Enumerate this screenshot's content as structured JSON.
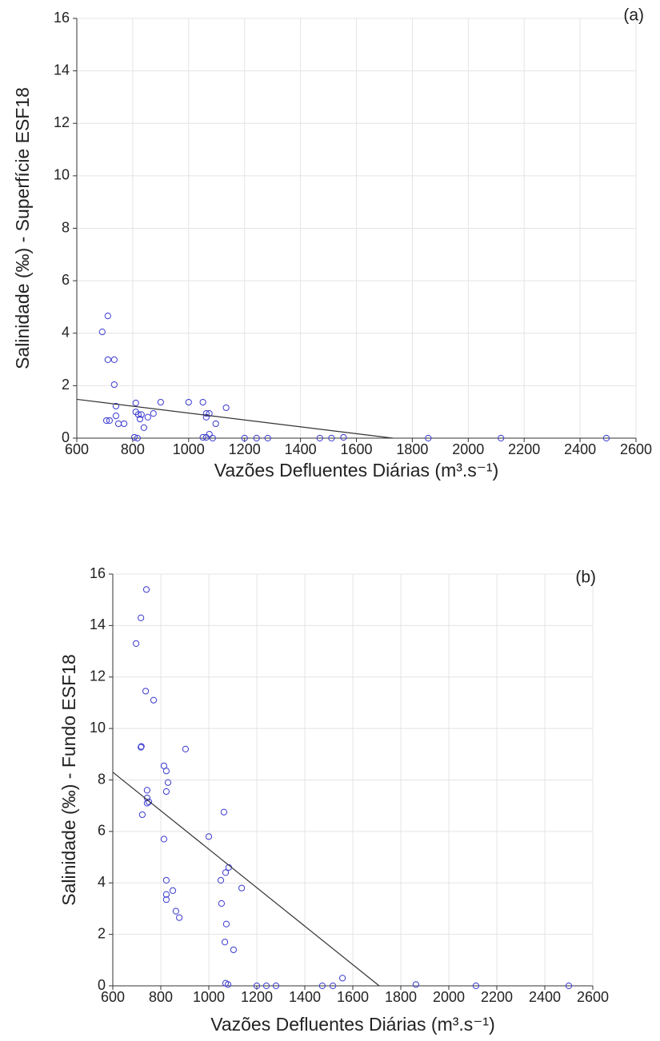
{
  "chart_data": [
    {
      "type": "scatter",
      "label": "(a)",
      "ylabel": "Salinidade (‰) - Superfície ESF18",
      "xlabel": "Vazões Defluentes Diárias (m³.s⁻¹)",
      "color": "#3a3ad0",
      "grid": true,
      "xlim": [
        600,
        2600
      ],
      "ylim": [
        0,
        16
      ],
      "xticks": [
        600,
        800,
        1000,
        1200,
        1400,
        1600,
        1800,
        2000,
        2200,
        2400,
        2600
      ],
      "yticks": [
        0,
        2,
        4,
        6,
        8,
        10,
        12,
        14,
        16
      ],
      "x": [
        691,
        711,
        711,
        734,
        734,
        740,
        706,
        717,
        740,
        749,
        769,
        811,
        811,
        820,
        826,
        831,
        840,
        854,
        874,
        900,
        1000,
        1051,
        1063,
        1074,
        1063,
        1097,
        1134,
        806,
        817,
        1051,
        1063,
        1074,
        1086,
        1200,
        1243,
        1283,
        1469,
        1511,
        1554,
        1857,
        2117,
        2494
      ],
      "y": [
        4.05,
        4.66,
        2.99,
        2.99,
        2.04,
        1.22,
        0.67,
        0.67,
        0.85,
        0.55,
        0.55,
        1.34,
        1.0,
        0.9,
        0.73,
        0.9,
        0.4,
        0.8,
        0.94,
        1.37,
        1.37,
        1.37,
        0.94,
        0.94,
        0.8,
        0.55,
        1.16,
        0.03,
        0,
        0.03,
        0.03,
        0.15,
        0,
        0,
        0,
        0,
        0,
        0,
        0.03,
        0,
        0,
        0
      ],
      "trend": {
        "x": [
          600,
          1730
        ],
        "y": [
          1.48,
          0
        ]
      }
    },
    {
      "type": "scatter",
      "label": "(b)",
      "ylabel": "Salinidade (‰) - Fundo ESF18",
      "xlabel": "Vazões Defluentes Diárias (m³.s⁻¹)",
      "color": "#3a3ad0",
      "grid": true,
      "xlim": [
        600,
        2600
      ],
      "ylim": [
        0,
        16
      ],
      "xticks": [
        600,
        800,
        1000,
        1200,
        1400,
        1600,
        1800,
        2000,
        2200,
        2400,
        2600
      ],
      "yticks": [
        0,
        2,
        4,
        6,
        8,
        10,
        12,
        14,
        16
      ],
      "x": [
        697,
        717,
        740,
        737,
        770,
        717,
        719,
        903,
        813,
        823,
        830,
        823,
        743,
        743,
        750,
        743,
        723,
        1000,
        1063,
        813,
        823,
        823,
        823,
        850,
        863,
        877,
        1050,
        1070,
        1083,
        1137,
        1053,
        1073,
        1067,
        1103,
        1070,
        1080,
        1200,
        1240,
        1280,
        1473,
        1517,
        1557,
        1863,
        2113,
        2500
      ],
      "y": [
        13.3,
        14.3,
        15.4,
        11.45,
        11.1,
        9.27,
        9.3,
        9.2,
        8.55,
        8.35,
        7.9,
        7.55,
        7.6,
        7.3,
        7.15,
        7.1,
        6.65,
        5.8,
        6.75,
        5.7,
        4.1,
        3.55,
        3.35,
        3.7,
        2.9,
        2.65,
        4.1,
        4.4,
        4.6,
        3.8,
        3.2,
        2.4,
        1.7,
        1.4,
        0.1,
        0.05,
        0,
        0,
        0,
        0,
        0,
        0.3,
        0.05,
        0,
        0
      ],
      "trend": {
        "x": [
          600,
          1710
        ],
        "y": [
          8.3,
          0
        ]
      }
    }
  ]
}
